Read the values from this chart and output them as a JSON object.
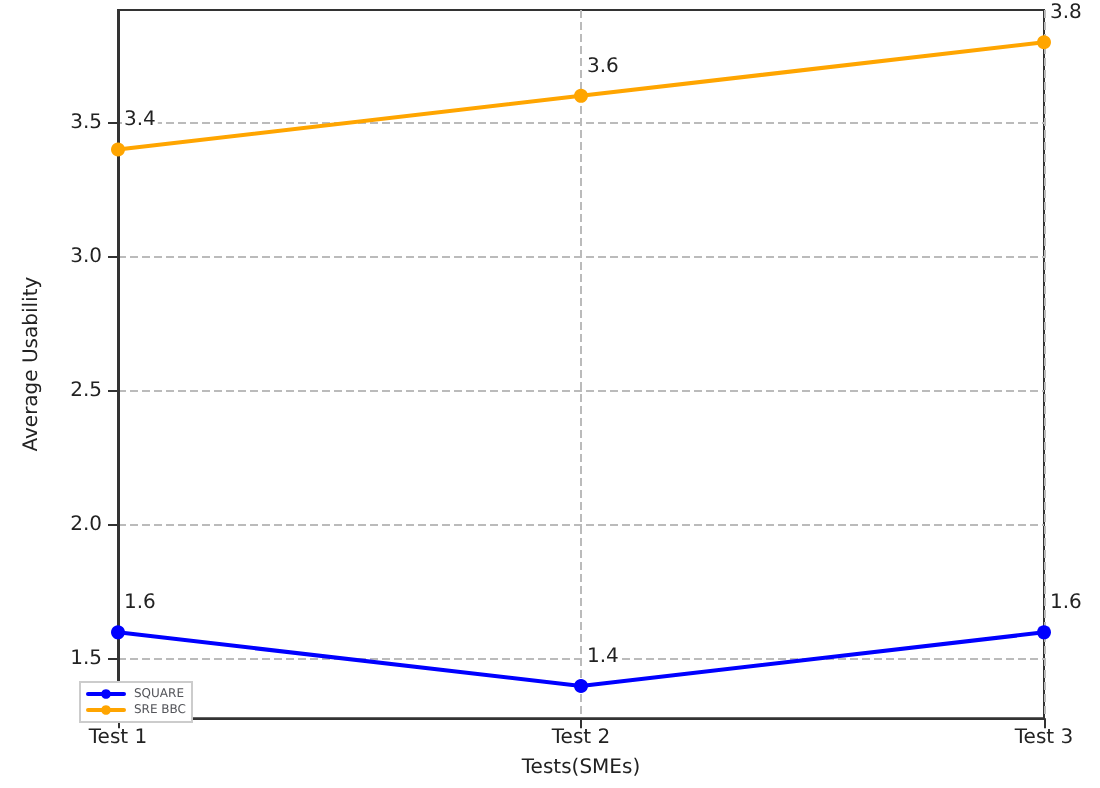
{
  "chart_data": {
    "type": "line",
    "xlabel": "Tests(SMEs)",
    "ylabel": "Average Usability",
    "categories": [
      "Test 1",
      "Test 2",
      "Test 3"
    ],
    "series": [
      {
        "name": "SQUARE",
        "color": "#0000ff",
        "values": [
          1.6,
          1.4,
          1.6
        ]
      },
      {
        "name": "SRE BBC",
        "color": "#ffa500",
        "values": [
          3.4,
          3.6,
          3.8
        ]
      }
    ],
    "ylim": [
      1.28,
      3.92
    ],
    "yticks": [
      1.5,
      {
        "value": 2,
        "label": "2.0"
      },
      2.5,
      {
        "value": 3,
        "label": "3.0"
      },
      3.5
    ],
    "grid": true,
    "legend": "bottom left",
    "marker": "circle",
    "line_style": "solid",
    "data_labels": true
  }
}
